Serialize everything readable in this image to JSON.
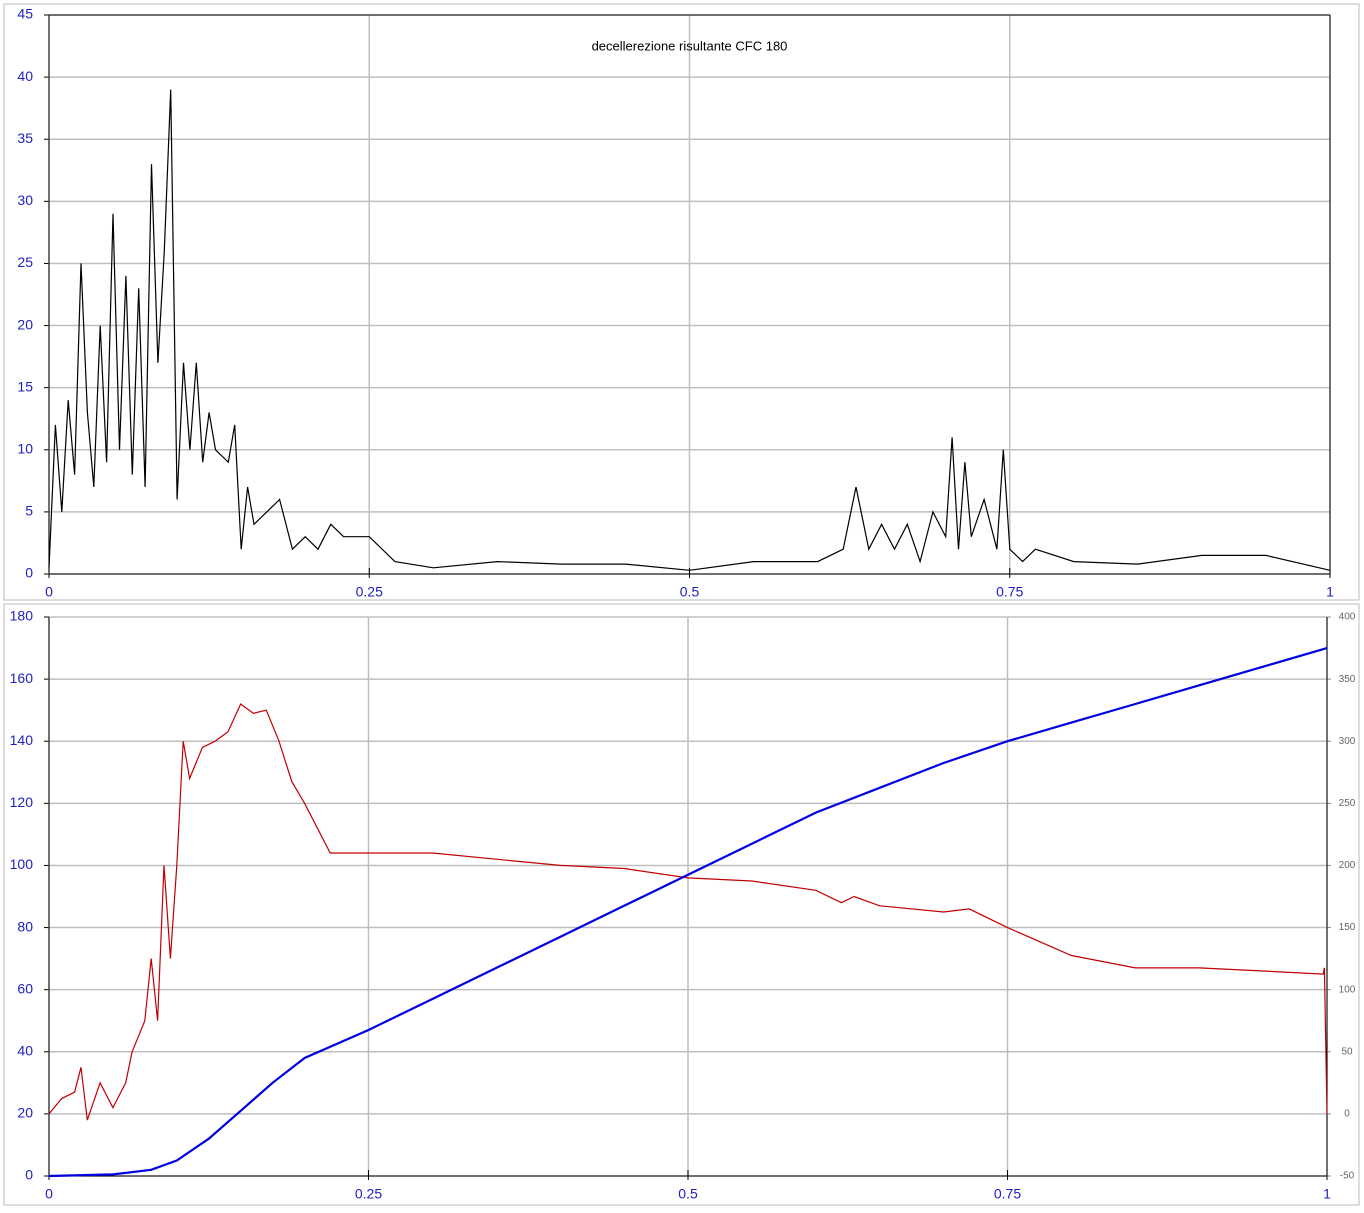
{
  "chart_data": [
    {
      "type": "line",
      "title": "decellerezione risultante CFC 180",
      "xlim": [
        0,
        1
      ],
      "xticks": [
        0,
        0.25,
        0.5,
        0.75,
        1
      ],
      "ylim": [
        0,
        45
      ],
      "yticks": [
        0,
        5,
        10,
        15,
        20,
        25,
        30,
        35,
        40,
        45
      ],
      "grid": true,
      "series": [
        {
          "color": "#000000",
          "x": [
            0,
            0.005,
            0.01,
            0.015,
            0.02,
            0.025,
            0.03,
            0.035,
            0.04,
            0.045,
            0.05,
            0.055,
            0.06,
            0.065,
            0.07,
            0.075,
            0.08,
            0.085,
            0.09,
            0.095,
            0.1,
            0.105,
            0.11,
            0.115,
            0.12,
            0.125,
            0.13,
            0.14,
            0.145,
            0.15,
            0.155,
            0.16,
            0.17,
            0.18,
            0.19,
            0.2,
            0.21,
            0.22,
            0.23,
            0.25,
            0.27,
            0.3,
            0.35,
            0.4,
            0.45,
            0.5,
            0.55,
            0.6,
            0.62,
            0.63,
            0.64,
            0.65,
            0.66,
            0.67,
            0.68,
            0.69,
            0.7,
            0.705,
            0.71,
            0.715,
            0.72,
            0.73,
            0.74,
            0.745,
            0.75,
            0.76,
            0.77,
            0.8,
            0.85,
            0.9,
            0.95,
            1
          ],
          "values": [
            0.5,
            12,
            5,
            14,
            8,
            25,
            13,
            7,
            20,
            9,
            29,
            10,
            24,
            8,
            23,
            7,
            33,
            17,
            26,
            39,
            6,
            17,
            10,
            17,
            9,
            13,
            10,
            9,
            12,
            2,
            7,
            4,
            5,
            6,
            2,
            3,
            2,
            4,
            3,
            3,
            1,
            0.5,
            1,
            0.8,
            0.8,
            0.3,
            1,
            1,
            2,
            7,
            2,
            4,
            2,
            4,
            1,
            5,
            3,
            11,
            2,
            9,
            3,
            6,
            2,
            10,
            2,
            1,
            2,
            1,
            0.8,
            1.5,
            1.5,
            0.3
          ]
        }
      ]
    },
    {
      "type": "line",
      "xlim": [
        0,
        1
      ],
      "xticks": [
        0,
        0.25,
        0.5,
        0.75,
        1
      ],
      "ylim": [
        0,
        180
      ],
      "yticks": [
        0,
        20,
        40,
        60,
        80,
        100,
        120,
        140,
        160,
        180
      ],
      "y2lim": [
        -50,
        400
      ],
      "y2ticks": [
        -50,
        0,
        50,
        100,
        150,
        200,
        250,
        300,
        350,
        400
      ],
      "grid": true,
      "series": [
        {
          "color": "#c00000",
          "x": [
            0,
            0.01,
            0.02,
            0.025,
            0.03,
            0.04,
            0.05,
            0.06,
            0.065,
            0.07,
            0.075,
            0.08,
            0.085,
            0.09,
            0.095,
            0.1,
            0.105,
            0.11,
            0.12,
            0.13,
            0.14,
            0.15,
            0.16,
            0.17,
            0.18,
            0.19,
            0.2,
            0.21,
            0.22,
            0.25,
            0.3,
            0.35,
            0.4,
            0.45,
            0.5,
            0.55,
            0.6,
            0.62,
            0.63,
            0.65,
            0.7,
            0.72,
            0.75,
            0.8,
            0.85,
            0.9,
            0.95,
            0.997,
            0.998,
            1
          ],
          "values": [
            20,
            25,
            27,
            35,
            18,
            30,
            22,
            30,
            40,
            45,
            50,
            70,
            50,
            100,
            70,
            100,
            140,
            128,
            138,
            140,
            143,
            152,
            149,
            150,
            140,
            127,
            120,
            112,
            104,
            104,
            104,
            102,
            100,
            99,
            96,
            95,
            92,
            88,
            90,
            87,
            85,
            86,
            80,
            71,
            67,
            67,
            66,
            65,
            67,
            20
          ]
        },
        {
          "color": "#0000e0",
          "x": [
            0,
            0.05,
            0.08,
            0.1,
            0.125,
            0.15,
            0.175,
            0.2,
            0.25,
            0.3,
            0.35,
            0.4,
            0.45,
            0.5,
            0.55,
            0.6,
            0.65,
            0.7,
            0.75,
            0.8,
            0.85,
            0.9,
            0.95,
            1
          ],
          "values": [
            0,
            0.5,
            2,
            5,
            12,
            21,
            30,
            38,
            47,
            57,
            67,
            77,
            87,
            97,
            107,
            117,
            125,
            133,
            140,
            146,
            152,
            158,
            164,
            170
          ]
        }
      ]
    }
  ]
}
